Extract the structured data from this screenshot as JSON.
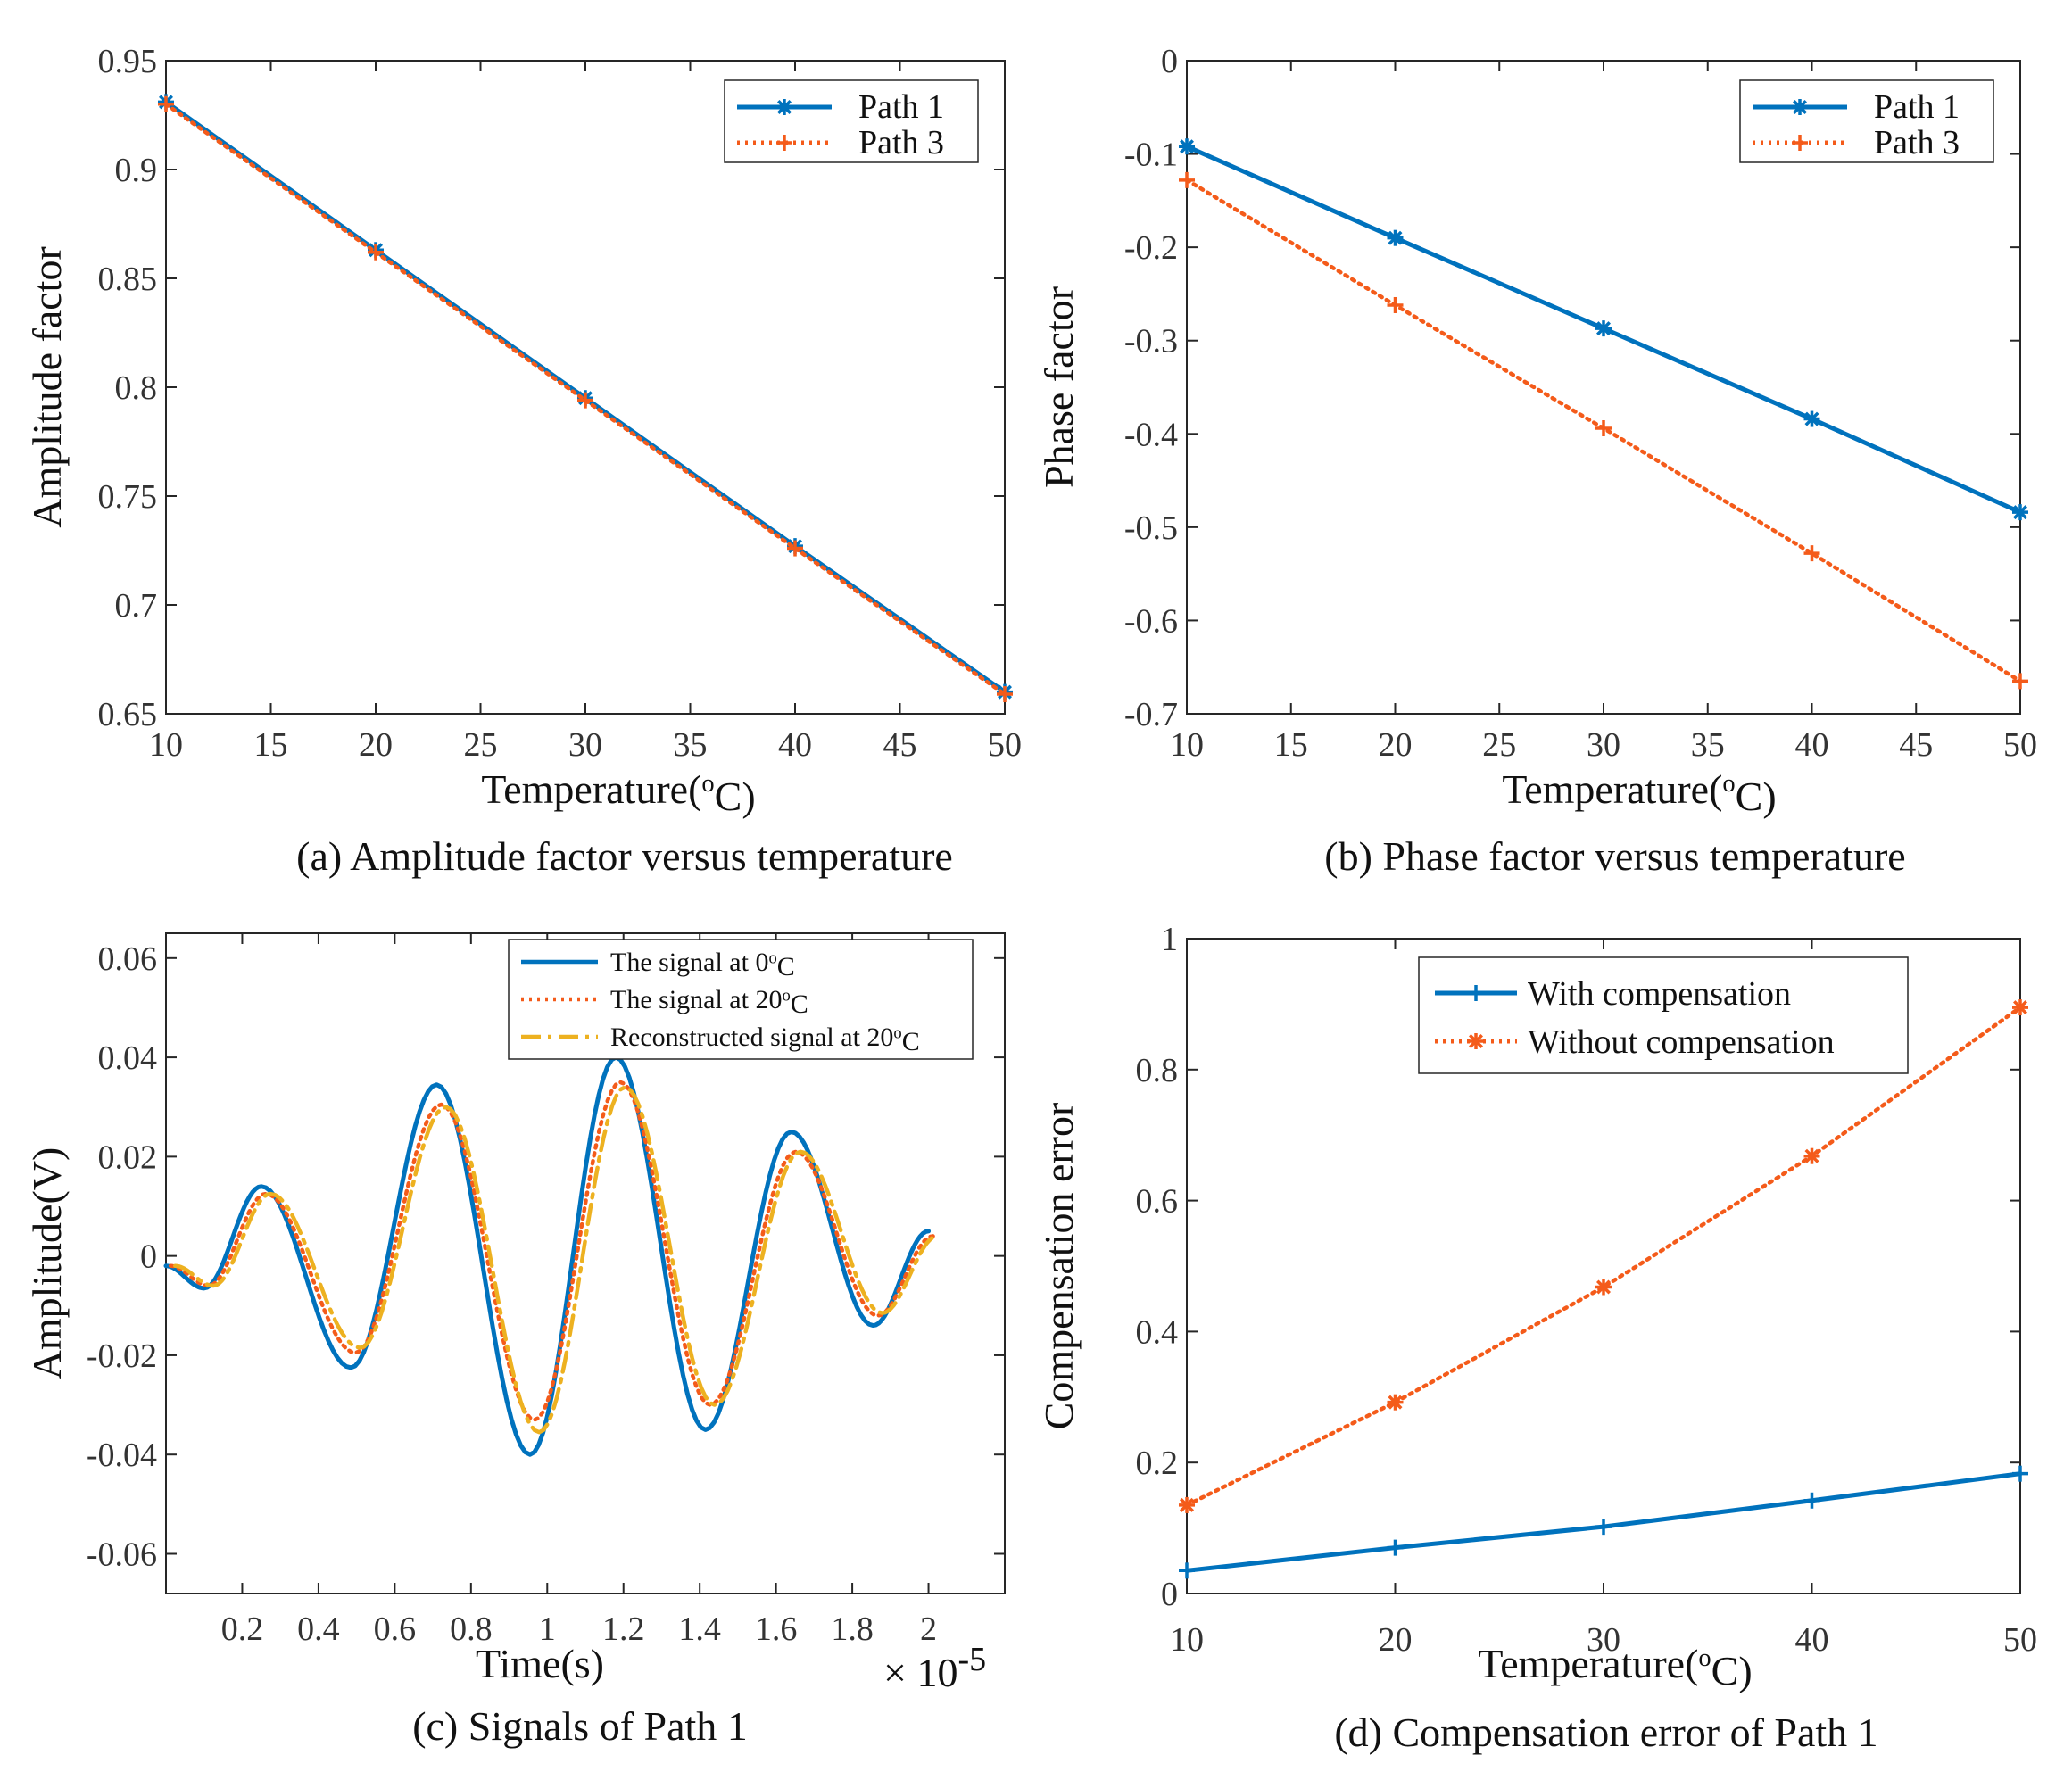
{
  "colors": {
    "blue": "#0072BD",
    "orange": "#F45B1A",
    "yellow": "#EDB120",
    "axis": "#262626"
  },
  "chart_data": [
    {
      "type": "line",
      "id": "a",
      "caption": "(a) Amplitude factor versus temperature",
      "xlabel": "Temperature(oC)",
      "ylabel": "Amplitude factor",
      "xlim": [
        10,
        50
      ],
      "ylim": [
        0.65,
        0.95
      ],
      "xticks": [
        10,
        15,
        20,
        25,
        30,
        35,
        40,
        45,
        50
      ],
      "yticks": [
        0.65,
        0.7,
        0.75,
        0.8,
        0.85,
        0.9,
        0.95
      ],
      "ytick_labels": [
        "0.65",
        "0.7",
        "0.75",
        "0.8",
        "0.85",
        "0.9",
        "0.95"
      ],
      "legend_position": "top-right",
      "x": [
        10,
        20,
        30,
        40,
        50
      ],
      "series": [
        {
          "name": "Path 1",
          "values": [
            0.931,
            0.863,
            0.795,
            0.727,
            0.66
          ],
          "color": "blue",
          "dash": "solid",
          "marker": "asterisk"
        },
        {
          "name": "Path 3",
          "values": [
            0.93,
            0.862,
            0.794,
            0.726,
            0.659
          ],
          "color": "orange",
          "dash": "dotted",
          "marker": "plus"
        }
      ]
    },
    {
      "type": "line",
      "id": "b",
      "caption": "(b) Phase factor versus temperature",
      "xlabel": "Temperature(oC)",
      "ylabel": "Phase factor",
      "xlim": [
        10,
        50
      ],
      "ylim": [
        -0.7,
        0
      ],
      "xticks": [
        10,
        15,
        20,
        25,
        30,
        35,
        40,
        45,
        50
      ],
      "yticks": [
        -0.7,
        -0.6,
        -0.5,
        -0.4,
        -0.3,
        -0.2,
        -0.1,
        0
      ],
      "ytick_labels": [
        "-0.7",
        "-0.6",
        "-0.5",
        "-0.4",
        "-0.3",
        "-0.2",
        "-0.1",
        "0"
      ],
      "legend_position": "top-right",
      "x": [
        10,
        20,
        30,
        40,
        50
      ],
      "series": [
        {
          "name": "Path 1",
          "values": [
            -0.092,
            -0.19,
            -0.287,
            -0.384,
            -0.484
          ],
          "color": "blue",
          "dash": "solid",
          "marker": "asterisk"
        },
        {
          "name": "Path 3",
          "values": [
            -0.128,
            -0.262,
            -0.394,
            -0.528,
            -0.665
          ],
          "color": "orange",
          "dash": "dotted",
          "marker": "plus"
        }
      ]
    },
    {
      "type": "line",
      "id": "c",
      "caption": "(c) Signals of Path 1",
      "xlabel": "Time(s)",
      "ylabel": "Amplitude(V)",
      "x_multiplier": "× 10-5",
      "xlim": [
        0,
        2.2
      ],
      "ylim": [
        -0.068,
        0.065
      ],
      "xticks": [
        0.2,
        0.4,
        0.6,
        0.8,
        1,
        1.2,
        1.4,
        1.6,
        1.8,
        2
      ],
      "xtick_labels": [
        "0.2",
        "0.4",
        "0.6",
        "0.8",
        "1",
        "1.2",
        "1.4",
        "1.6",
        "1.8",
        "2"
      ],
      "yticks": [
        -0.06,
        -0.04,
        -0.02,
        0,
        0.02,
        0.04,
        0.06
      ],
      "ytick_labels": [
        "-0.06",
        "-0.04",
        "-0.02",
        "0",
        "0.02",
        "0.04",
        "0.06"
      ],
      "legend_position": "top-right",
      "x": [
        0,
        0.1,
        0.25,
        0.485,
        0.71,
        0.955,
        1.18,
        1.415,
        1.64,
        1.855,
        2.0
      ],
      "series": [
        {
          "name": "The signal at 0oC",
          "values": [
            -0.002,
            -0.0065,
            0.014,
            -0.0225,
            0.0345,
            -0.04,
            0.04,
            -0.035,
            0.025,
            -0.014,
            0.005
          ],
          "color": "blue",
          "dash": "solid"
        },
        {
          "name": "The signal at 20oC",
          "values": [
            -0.002,
            -0.006,
            0.0125,
            -0.0195,
            0.0305,
            -0.033,
            0.035,
            -0.03,
            0.021,
            -0.012,
            0.004
          ],
          "color": "orange",
          "dash": "dotted"
        },
        {
          "name": "Reconstructed signal at 20oC",
          "values": [
            -0.002,
            -0.006,
            0.0125,
            -0.0185,
            0.03,
            -0.0355,
            0.034,
            -0.03,
            0.021,
            -0.0115,
            0.004
          ],
          "color": "yellow",
          "dash": "dashdot"
        }
      ]
    },
    {
      "type": "line",
      "id": "d",
      "caption": "(d) Compensation error of Path 1",
      "xlabel": "Temperature(oC)",
      "ylabel": "Compensation error",
      "xlim": [
        10,
        50
      ],
      "ylim": [
        0,
        1
      ],
      "xticks": [
        10,
        20,
        30,
        40,
        50
      ],
      "yticks": [
        0,
        0.2,
        0.4,
        0.6,
        0.8,
        1
      ],
      "ytick_labels": [
        "0",
        "0.2",
        "0.4",
        "0.6",
        "0.8",
        "1"
      ],
      "legend_position": "top",
      "x": [
        10,
        20,
        30,
        40,
        50
      ],
      "series": [
        {
          "name": "With compensation",
          "values": [
            0.035,
            0.07,
            0.102,
            0.142,
            0.183
          ],
          "color": "blue",
          "dash": "solid",
          "marker": "plus"
        },
        {
          "name": "Without compensation",
          "values": [
            0.135,
            0.292,
            0.468,
            0.668,
            0.895
          ],
          "color": "orange",
          "dash": "dotted",
          "marker": "asterisk"
        }
      ]
    }
  ]
}
